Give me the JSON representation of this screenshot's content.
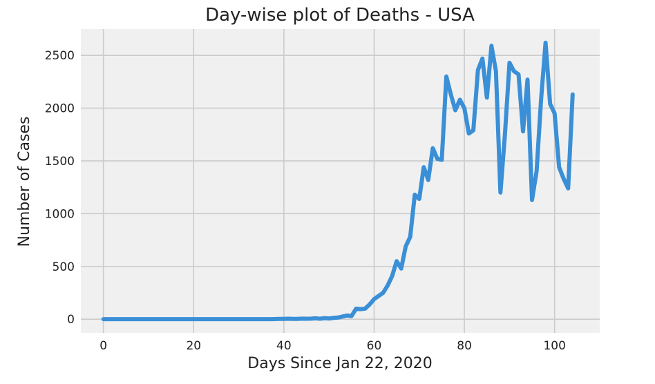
{
  "chart_data": {
    "type": "line",
    "title": "Day-wise plot of Deaths - USA",
    "xlabel": "Days Since Jan 22, 2020",
    "ylabel": "Number of Cases",
    "xlim": [
      -5,
      110
    ],
    "ylim": [
      -130,
      2750
    ],
    "xticks": [
      0,
      20,
      40,
      60,
      80,
      100
    ],
    "yticks": [
      0,
      500,
      1000,
      1500,
      2000,
      2500
    ],
    "grid": true,
    "legend": "none",
    "colors": {
      "line": "#3a8fd6",
      "plot_bg": "#f0f0f0",
      "grid": "#cbcbcb",
      "figure_bg": "#ffffff"
    },
    "series": [
      {
        "x": [
          0,
          1,
          2,
          3,
          4,
          5,
          6,
          7,
          8,
          9,
          10,
          11,
          12,
          13,
          14,
          15,
          16,
          17,
          18,
          19,
          20,
          21,
          22,
          23,
          24,
          25,
          26,
          27,
          28,
          29,
          30,
          31,
          32,
          33,
          34,
          35,
          36,
          37,
          38,
          39,
          40,
          41,
          42,
          43,
          44,
          45,
          46,
          47,
          48,
          49,
          50,
          51,
          52,
          53,
          54,
          55,
          56,
          57,
          58,
          59,
          60,
          61,
          62,
          63,
          64,
          65,
          66,
          67,
          68,
          69,
          70,
          71,
          72,
          73,
          74,
          75,
          76,
          77,
          78,
          79,
          80,
          81,
          82,
          83,
          84,
          85,
          86,
          87,
          88,
          89,
          90,
          91,
          92,
          93,
          94,
          95,
          96,
          97,
          98,
          99,
          100,
          101,
          102,
          103,
          104
        ],
        "y": [
          0,
          0,
          0,
          0,
          0,
          0,
          0,
          0,
          0,
          0,
          0,
          0,
          0,
          0,
          0,
          0,
          0,
          0,
          0,
          0,
          0,
          0,
          0,
          0,
          0,
          0,
          0,
          0,
          0,
          0,
          0,
          0,
          0,
          0,
          0,
          0,
          0,
          0,
          1,
          2,
          3,
          4,
          2,
          3,
          5,
          4,
          5,
          8,
          4,
          10,
          7,
          12,
          15,
          25,
          35,
          30,
          100,
          95,
          100,
          140,
          190,
          220,
          250,
          320,
          410,
          550,
          480,
          690,
          780,
          1180,
          1140,
          1440,
          1320,
          1620,
          1520,
          1510,
          2300,
          2130,
          1980,
          2080,
          2000,
          1760,
          1790,
          2360,
          2470,
          2100,
          2590,
          2350,
          1200,
          1760,
          2430,
          2350,
          2320,
          1780,
          2270,
          1130,
          1400,
          2080,
          2620,
          2040,
          1950,
          1440,
          1330,
          1240,
          2130
        ]
      }
    ]
  }
}
